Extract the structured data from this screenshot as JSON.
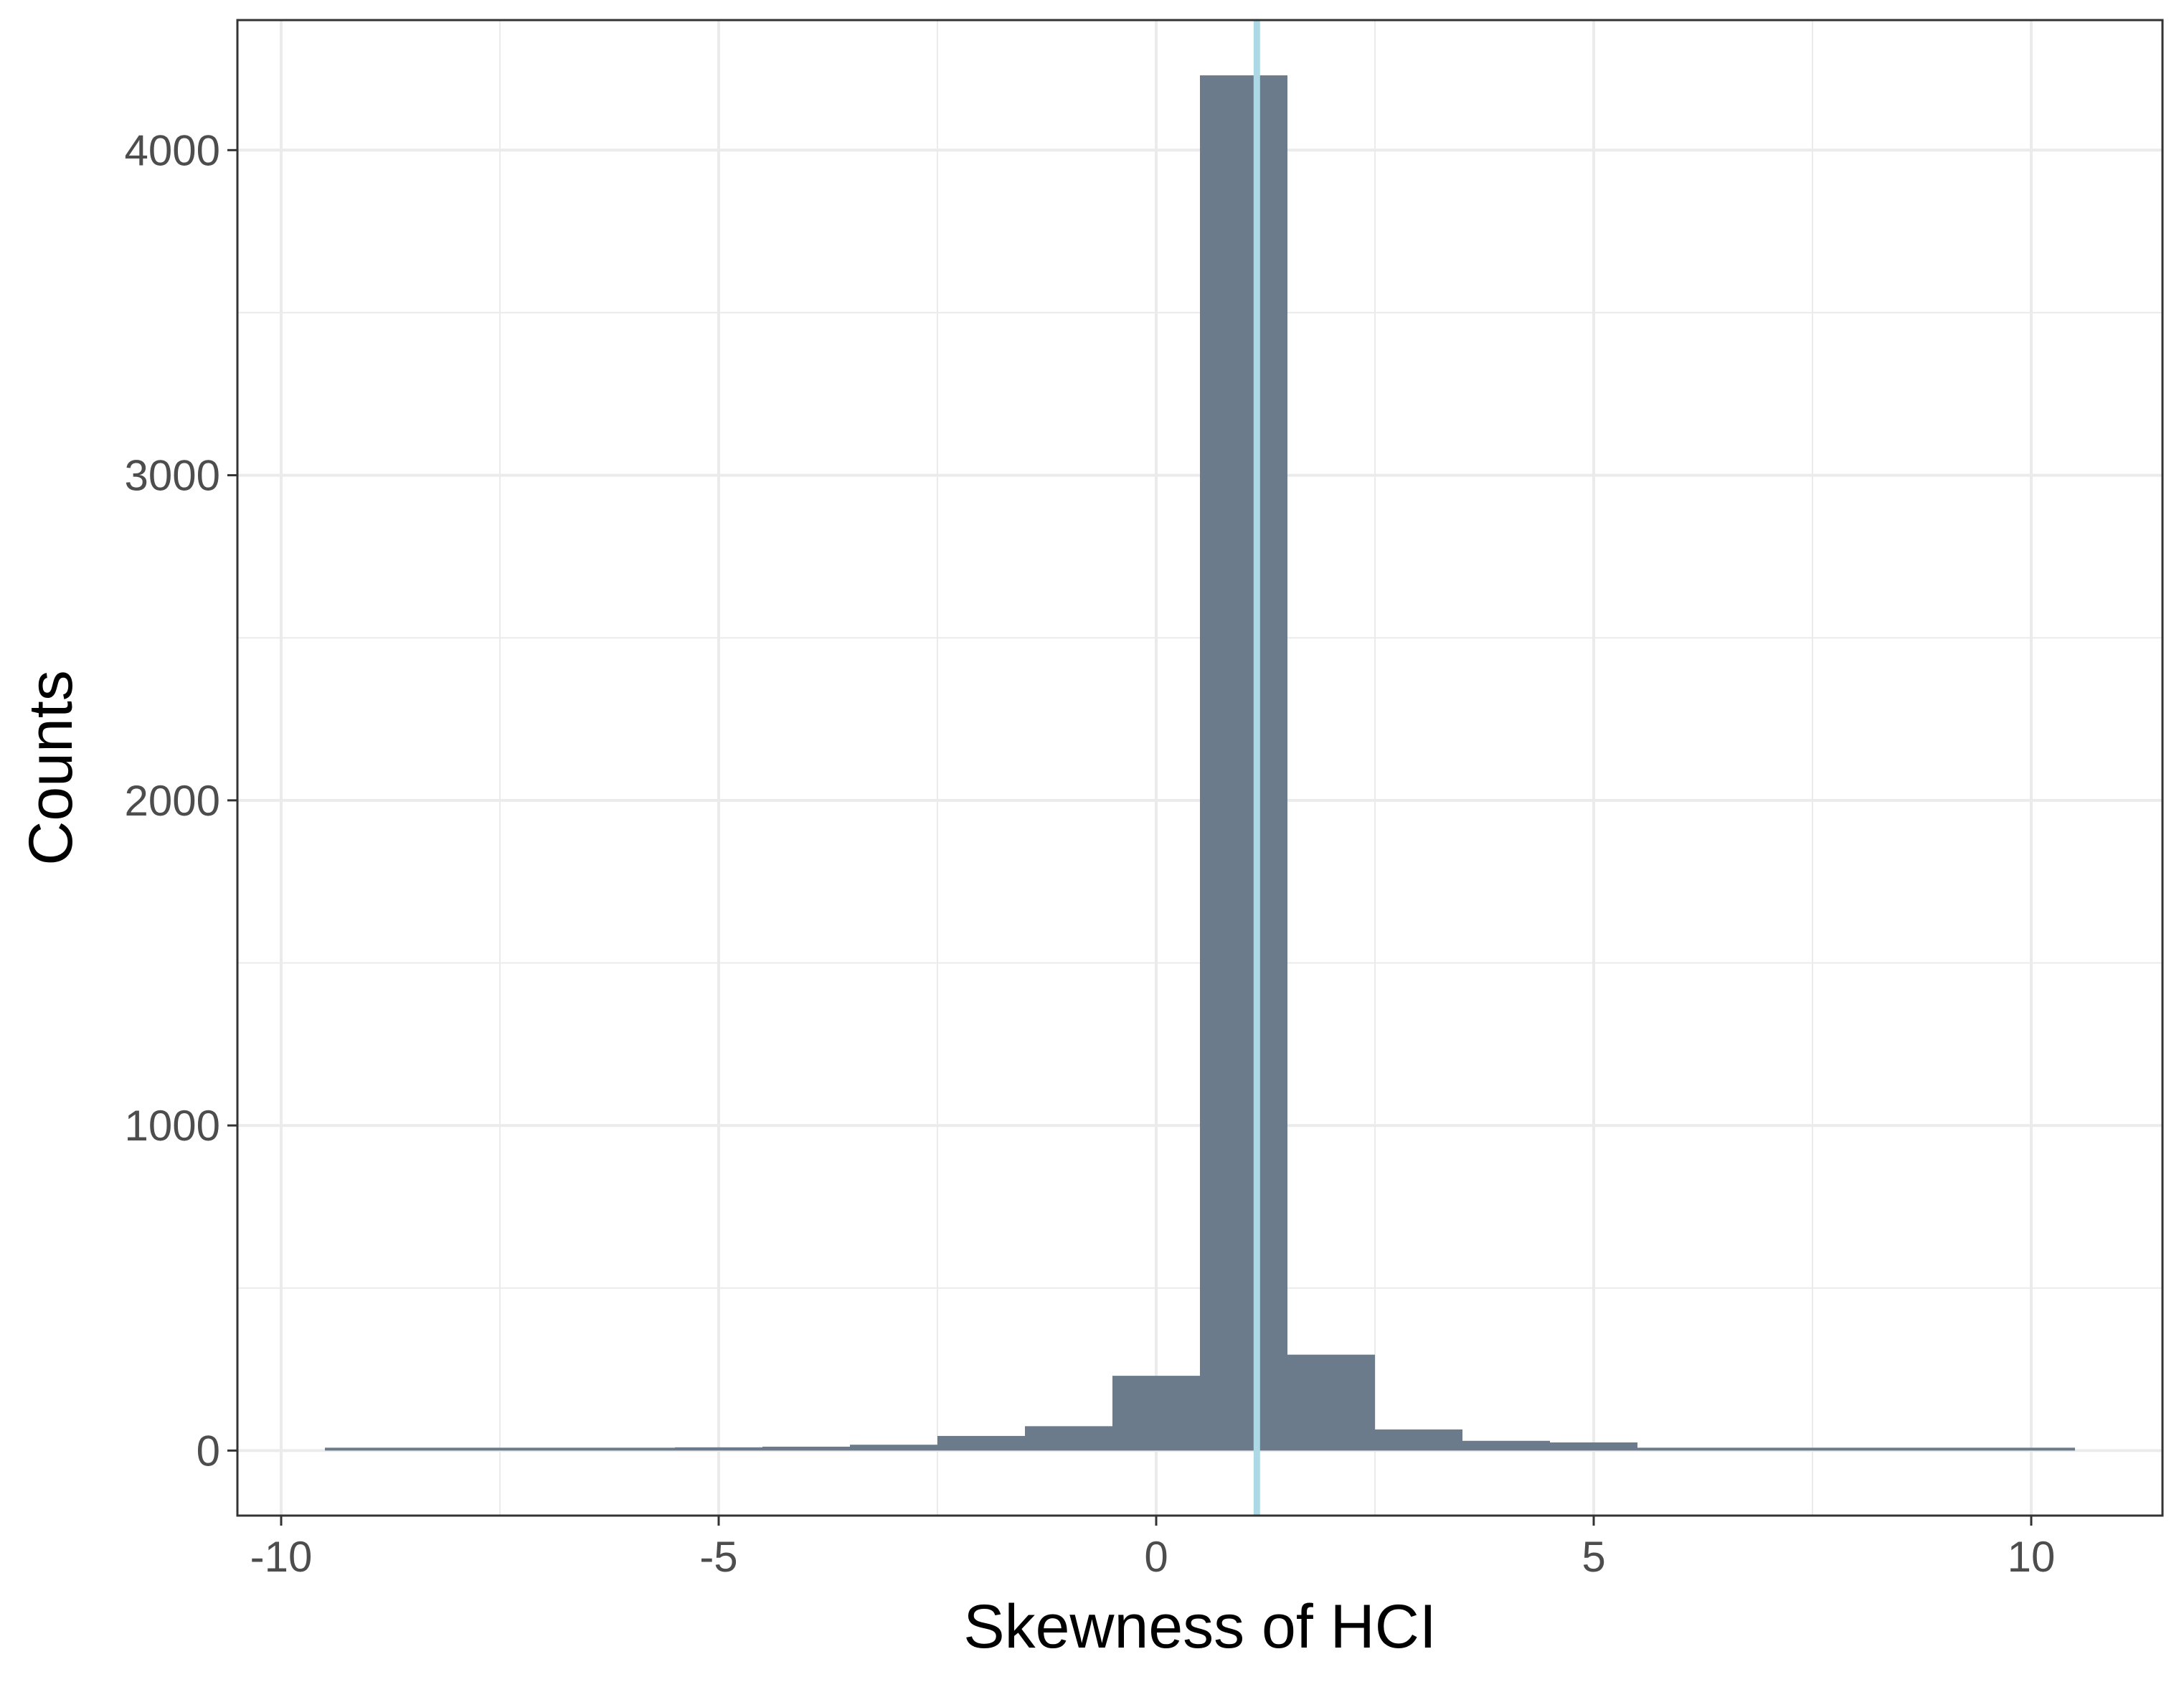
{
  "chart_data": {
    "type": "bar",
    "title": "",
    "xlabel": "Skewness of HCI",
    "ylabel": "Counts",
    "bin_width": 1,
    "bins": [
      {
        "center": -9,
        "count": 3
      },
      {
        "center": -8,
        "count": 3
      },
      {
        "center": -7,
        "count": 3
      },
      {
        "center": -6,
        "count": 4
      },
      {
        "center": -5,
        "count": 10
      },
      {
        "center": -4,
        "count": 12
      },
      {
        "center": -3,
        "count": 18
      },
      {
        "center": -2,
        "count": 45
      },
      {
        "center": -1,
        "count": 75
      },
      {
        "center": 0,
        "count": 230
      },
      {
        "center": 1,
        "count": 4230
      },
      {
        "center": 2,
        "count": 295
      },
      {
        "center": 3,
        "count": 65
      },
      {
        "center": 4,
        "count": 30
      },
      {
        "center": 5,
        "count": 25
      },
      {
        "center": 6,
        "count": 6
      },
      {
        "center": 7,
        "count": 8
      },
      {
        "center": 8,
        "count": 5
      },
      {
        "center": 9,
        "count": 4
      },
      {
        "center": 10,
        "count": 3
      }
    ],
    "reference_line": {
      "x": 1.15,
      "color": "#add8e6"
    },
    "xlim": [
      -10.5,
      11.5
    ],
    "ylim": [
      -200,
      4400
    ],
    "x_ticks": [
      -10,
      -5,
      0,
      5,
      10
    ],
    "x_tick_labels": [
      "-10",
      "-5",
      "0",
      "5",
      "10"
    ],
    "y_ticks": [
      0,
      1000,
      2000,
      3000,
      4000
    ],
    "y_tick_labels": [
      "0",
      "1000",
      "2000",
      "3000",
      "4000"
    ],
    "grid": true,
    "legend": "none",
    "colors": {
      "bar": "#6b7b8b",
      "grid": "#ebebeb",
      "panel_border": "#333333"
    }
  }
}
